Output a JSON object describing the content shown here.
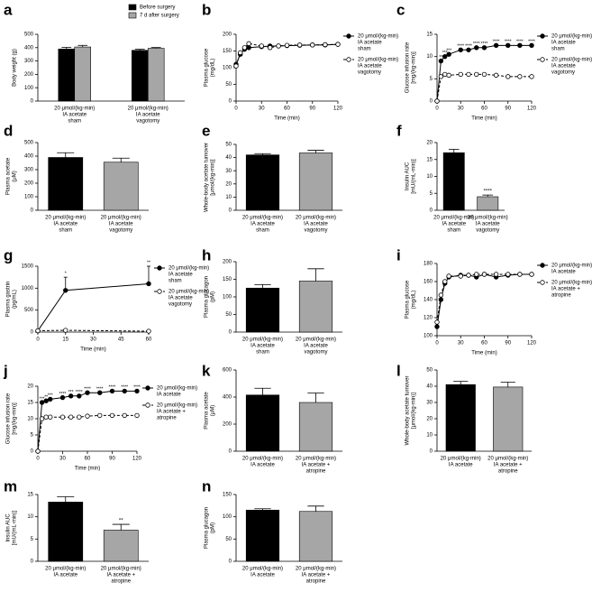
{
  "chart_data": [
    {
      "type": "bar",
      "panel": "a",
      "ylabel": [
        "Body weight (g)"
      ],
      "ylim": [
        0,
        500
      ],
      "yticks": [
        0,
        100,
        200,
        300,
        400,
        500
      ],
      "categories": [
        [
          "20 μmol/(kg-min)",
          "IA acetate",
          "sham"
        ],
        [
          "20 μmol/(kg-min)",
          "IA acetate",
          "vagotomy"
        ]
      ],
      "series": [
        {
          "name": "Before surgery",
          "color": "#000000",
          "values": [
            390,
            380
          ],
          "errors": [
            12,
            8
          ]
        },
        {
          "name": "7 d after surgery",
          "color": "#a6a6a6",
          "values": [
            405,
            395
          ],
          "errors": [
            12,
            6
          ]
        }
      ]
    },
    {
      "type": "line",
      "panel": "b",
      "ylabel": [
        "Plasma glucose",
        "(mg/dL)"
      ],
      "xlabel": "Time (min)",
      "ylim": [
        0,
        200
      ],
      "yticks": [
        0,
        50,
        100,
        150,
        200
      ],
      "xlim": [
        0,
        120
      ],
      "xticks": [
        0,
        30,
        60,
        90,
        120
      ],
      "x": [
        0,
        5,
        10,
        15,
        30,
        40,
        50,
        60,
        75,
        90,
        105,
        120
      ],
      "series": [
        {
          "name": [
            "20 μmol/(kg-min)",
            "IA acetate",
            "sham"
          ],
          "color": "#000000",
          "marker": "filled",
          "linestyle": "solid",
          "values": [
            110,
            140,
            155,
            160,
            163,
            165,
            165,
            166,
            167,
            168,
            168,
            170
          ]
        },
        {
          "name": [
            "20 μmol/(kg-min)",
            "IA acetate",
            "vagotomy"
          ],
          "color": "#000000",
          "marker": "open",
          "linestyle": "dashed",
          "values": [
            105,
            145,
            160,
            172,
            165,
            160,
            165,
            167,
            168,
            168,
            169,
            170
          ]
        }
      ]
    },
    {
      "type": "line",
      "panel": "c",
      "ylabel": [
        "Glucose infusion rate",
        "[mg/(kg-min)]"
      ],
      "xlabel": "Time (min)",
      "ylim": [
        0,
        15
      ],
      "yticks": [
        0,
        5,
        10,
        15
      ],
      "xlim": [
        0,
        120
      ],
      "xticks": [
        0,
        30,
        60,
        90,
        120
      ],
      "x": [
        0,
        5,
        10,
        15,
        30,
        40,
        50,
        60,
        75,
        90,
        105,
        120
      ],
      "series": [
        {
          "name": [
            "20 μmol/(kg-min)",
            "IA acetate",
            "sham"
          ],
          "color": "#000000",
          "marker": "filled",
          "linestyle": "solid",
          "values": [
            0,
            9,
            10,
            10.5,
            11.5,
            11.5,
            12,
            12,
            12.5,
            12.5,
            12.5,
            12.5
          ],
          "annotations": [
            null,
            "**",
            "***",
            "***",
            "****",
            "****",
            "****",
            "****",
            "****",
            "****",
            "****",
            "****"
          ]
        },
        {
          "name": [
            "20 μmol/(kg-min)",
            "IA acetate",
            "vagotomy"
          ],
          "color": "#000000",
          "marker": "open",
          "linestyle": "dashed",
          "values": [
            0,
            5.5,
            6,
            5.8,
            6,
            6,
            6,
            6,
            5.8,
            5.5,
            5.5,
            5.5
          ]
        }
      ]
    },
    {
      "type": "bar",
      "panel": "d",
      "ylabel": [
        "Plasma acetate",
        "(μM)"
      ],
      "ylim": [
        0,
        500
      ],
      "yticks": [
        0,
        100,
        200,
        300,
        400,
        500
      ],
      "categories": [
        [
          "20 μmol/(kg-min)",
          "IA acetate",
          "sham"
        ],
        [
          "20 μmol/(kg-min)",
          "IA acetate",
          "vagotomy"
        ]
      ],
      "colors": [
        "#000000",
        "#a6a6a6"
      ],
      "values": [
        390,
        355
      ],
      "errors": [
        35,
        30
      ]
    },
    {
      "type": "bar",
      "panel": "e",
      "ylabel": [
        "Whole-body acetate turnover",
        "[μmol/(kg-min)]"
      ],
      "ylim": [
        0,
        50
      ],
      "yticks": [
        0,
        10,
        20,
        30,
        40,
        50
      ],
      "categories": [
        [
          "20 μmol/(kg-min)",
          "IA acetate",
          "sham"
        ],
        [
          "20 μmol/(kg-min)",
          "IA acetate",
          "vagotomy"
        ]
      ],
      "colors": [
        "#000000",
        "#a6a6a6"
      ],
      "values": [
        42,
        43.5
      ],
      "errors": [
        1,
        2
      ]
    },
    {
      "type": "bar",
      "panel": "f",
      "ylabel": [
        "Insulin AUC",
        "[mU/(mL-min)]"
      ],
      "ylim": [
        0,
        20
      ],
      "yticks": [
        0,
        5,
        10,
        15,
        20
      ],
      "categories": [
        [
          "20 μmol/(kg-min)",
          "IA acetate",
          "sham"
        ],
        [
          "20 μmol/(kg-min)",
          "IA acetate",
          "vagotomy"
        ]
      ],
      "colors": [
        "#000000",
        "#a6a6a6"
      ],
      "values": [
        17,
        4
      ],
      "errors": [
        1,
        0.5
      ],
      "annotations": [
        null,
        "****"
      ]
    },
    {
      "type": "line",
      "panel": "g",
      "ylabel": [
        "Plasma gastrin",
        "(pg/mL)"
      ],
      "xlabel": "Time (min)",
      "ylim": [
        0,
        1500
      ],
      "yticks": [
        0,
        500,
        1000,
        1500
      ],
      "xlim": [
        0,
        60
      ],
      "xticks": [
        0,
        15,
        30,
        45,
        60
      ],
      "x": [
        0,
        15,
        60
      ],
      "series": [
        {
          "name": [
            "20 μmol/(kg-min)",
            "IA acetate",
            "sham"
          ],
          "color": "#000000",
          "marker": "filled",
          "linestyle": "solid",
          "values": [
            30,
            950,
            1100
          ],
          "errors": [
            0,
            300,
            400
          ],
          "annotations": [
            null,
            "*",
            "**"
          ]
        },
        {
          "name": [
            "20 μmol/(kg-min)",
            "IA acetate",
            "vagotomy"
          ],
          "color": "#000000",
          "marker": "open",
          "linestyle": "dashed",
          "values": [
            30,
            40,
            20
          ]
        }
      ]
    },
    {
      "type": "bar",
      "panel": "h",
      "ylabel": [
        "Plasma glucagon",
        "(pM)"
      ],
      "ylim": [
        0,
        200
      ],
      "yticks": [
        0,
        50,
        100,
        150,
        200
      ],
      "categories": [
        [
          "20 μmol/(kg-min)",
          "IA acetate",
          "sham"
        ],
        [
          "20 μmol/(kg-min)",
          "IA acetate",
          "vagotomy"
        ]
      ],
      "colors": [
        "#000000",
        "#a6a6a6"
      ],
      "values": [
        125,
        145
      ],
      "errors": [
        10,
        35
      ]
    },
    {
      "type": "line",
      "panel": "i",
      "ylabel": [
        "Plasma glucose",
        "(mg/dL)"
      ],
      "xlabel": "Time (min)",
      "ylim": [
        100,
        180
      ],
      "yticks": [
        100,
        120,
        140,
        160,
        180
      ],
      "xlim": [
        0,
        120
      ],
      "xticks": [
        0,
        30,
        60,
        90,
        120
      ],
      "x": [
        0,
        5,
        10,
        15,
        30,
        40,
        50,
        60,
        75,
        90,
        105,
        120
      ],
      "series": [
        {
          "name": [
            "20 μmol/(kg-min)",
            "IA acetate"
          ],
          "color": "#000000",
          "marker": "filled",
          "linestyle": "solid",
          "values": [
            110,
            140,
            158,
            165,
            167,
            167,
            165,
            168,
            165,
            167,
            168,
            168
          ]
        },
        {
          "name": [
            "20 μmol/(kg-min)",
            "IA acetate +",
            "atropine"
          ],
          "color": "#000000",
          "marker": "open",
          "linestyle": "dashed",
          "values": [
            115,
            145,
            160,
            166,
            166,
            167,
            168,
            168,
            168,
            168,
            168,
            168
          ]
        }
      ]
    },
    {
      "type": "line",
      "panel": "j",
      "ylabel": [
        "Glucose infusion rate",
        "[mg/(kg-min)]"
      ],
      "xlabel": "Time (min)",
      "ylim": [
        0,
        20
      ],
      "yticks": [
        0,
        5,
        10,
        15,
        20
      ],
      "xlim": [
        0,
        120
      ],
      "xticks": [
        0,
        30,
        60,
        90,
        120
      ],
      "x": [
        0,
        5,
        10,
        15,
        30,
        40,
        50,
        60,
        75,
        90,
        105,
        120
      ],
      "series": [
        {
          "name": [
            "20 μmol/(kg-min)",
            "IA acetate"
          ],
          "color": "#000000",
          "marker": "filled",
          "linestyle": "solid",
          "values": [
            0,
            15,
            15.5,
            16,
            16.5,
            17,
            17,
            18,
            18,
            18.5,
            18.5,
            18.5
          ],
          "annotations": [
            null,
            "***",
            "**",
            "***",
            "****",
            "***",
            "****",
            "****",
            "****",
            "****",
            "****",
            "****"
          ]
        },
        {
          "name": [
            "20 μmol/(kg-min)",
            "IA acetate +",
            "atropine"
          ],
          "color": "#000000",
          "marker": "open",
          "linestyle": "dashed",
          "values": [
            0,
            10,
            10.5,
            10.5,
            10.5,
            10.5,
            10.5,
            10.8,
            11,
            11,
            11,
            11
          ]
        }
      ]
    },
    {
      "type": "bar",
      "panel": "k",
      "ylabel": [
        "Plasma acetate",
        "(μM)"
      ],
      "ylim": [
        0,
        600
      ],
      "yticks": [
        0,
        200,
        400,
        600
      ],
      "categories": [
        [
          "20 μmol/(kg-min)",
          "IA acetate"
        ],
        [
          "20 μmol/(kg-min)",
          "IA acetate +",
          "atropine"
        ]
      ],
      "colors": [
        "#000000",
        "#a6a6a6"
      ],
      "values": [
        415,
        360
      ],
      "errors": [
        50,
        70
      ]
    },
    {
      "type": "bar",
      "panel": "l",
      "ylabel": [
        "Whole-body acetate turnover",
        "[μmol/(kg-min)]"
      ],
      "ylim": [
        0,
        50
      ],
      "yticks": [
        0,
        10,
        20,
        30,
        40,
        50
      ],
      "categories": [
        [
          "20 μmol/(kg-min)",
          "IA acetate"
        ],
        [
          "20 μmol/(kg-min)",
          "IA acetate +",
          "atropine"
        ]
      ],
      "colors": [
        "#000000",
        "#a6a6a6"
      ],
      "values": [
        41,
        39.5
      ],
      "errors": [
        2,
        3
      ]
    },
    {
      "type": "bar",
      "panel": "m",
      "ylabel": [
        "Insulin AUC",
        "[mU/(mL-min)]"
      ],
      "ylim": [
        0,
        15
      ],
      "yticks": [
        0,
        5,
        10,
        15
      ],
      "categories": [
        [
          "20 μmol/(kg-min)",
          "IA acetate"
        ],
        [
          "20 μmol/(kg-min)",
          "IA acetate +",
          "atropine"
        ]
      ],
      "colors": [
        "#000000",
        "#a6a6a6"
      ],
      "values": [
        13.3,
        7
      ],
      "errors": [
        1.2,
        1.3
      ],
      "annotations": [
        null,
        "**"
      ]
    },
    {
      "type": "bar",
      "panel": "n",
      "ylabel": [
        "Plasma glucagon",
        "(pM)"
      ],
      "ylim": [
        0,
        150
      ],
      "yticks": [
        0,
        50,
        100,
        150
      ],
      "categories": [
        [
          "20 μmol/(kg-min)",
          "IA acetate"
        ],
        [
          "20 μmol/(kg-min)",
          "IA acetate +",
          "atropine"
        ]
      ],
      "colors": [
        "#000000",
        "#a6a6a6"
      ],
      "values": [
        115,
        112
      ],
      "errors": [
        3,
        12
      ]
    }
  ]
}
